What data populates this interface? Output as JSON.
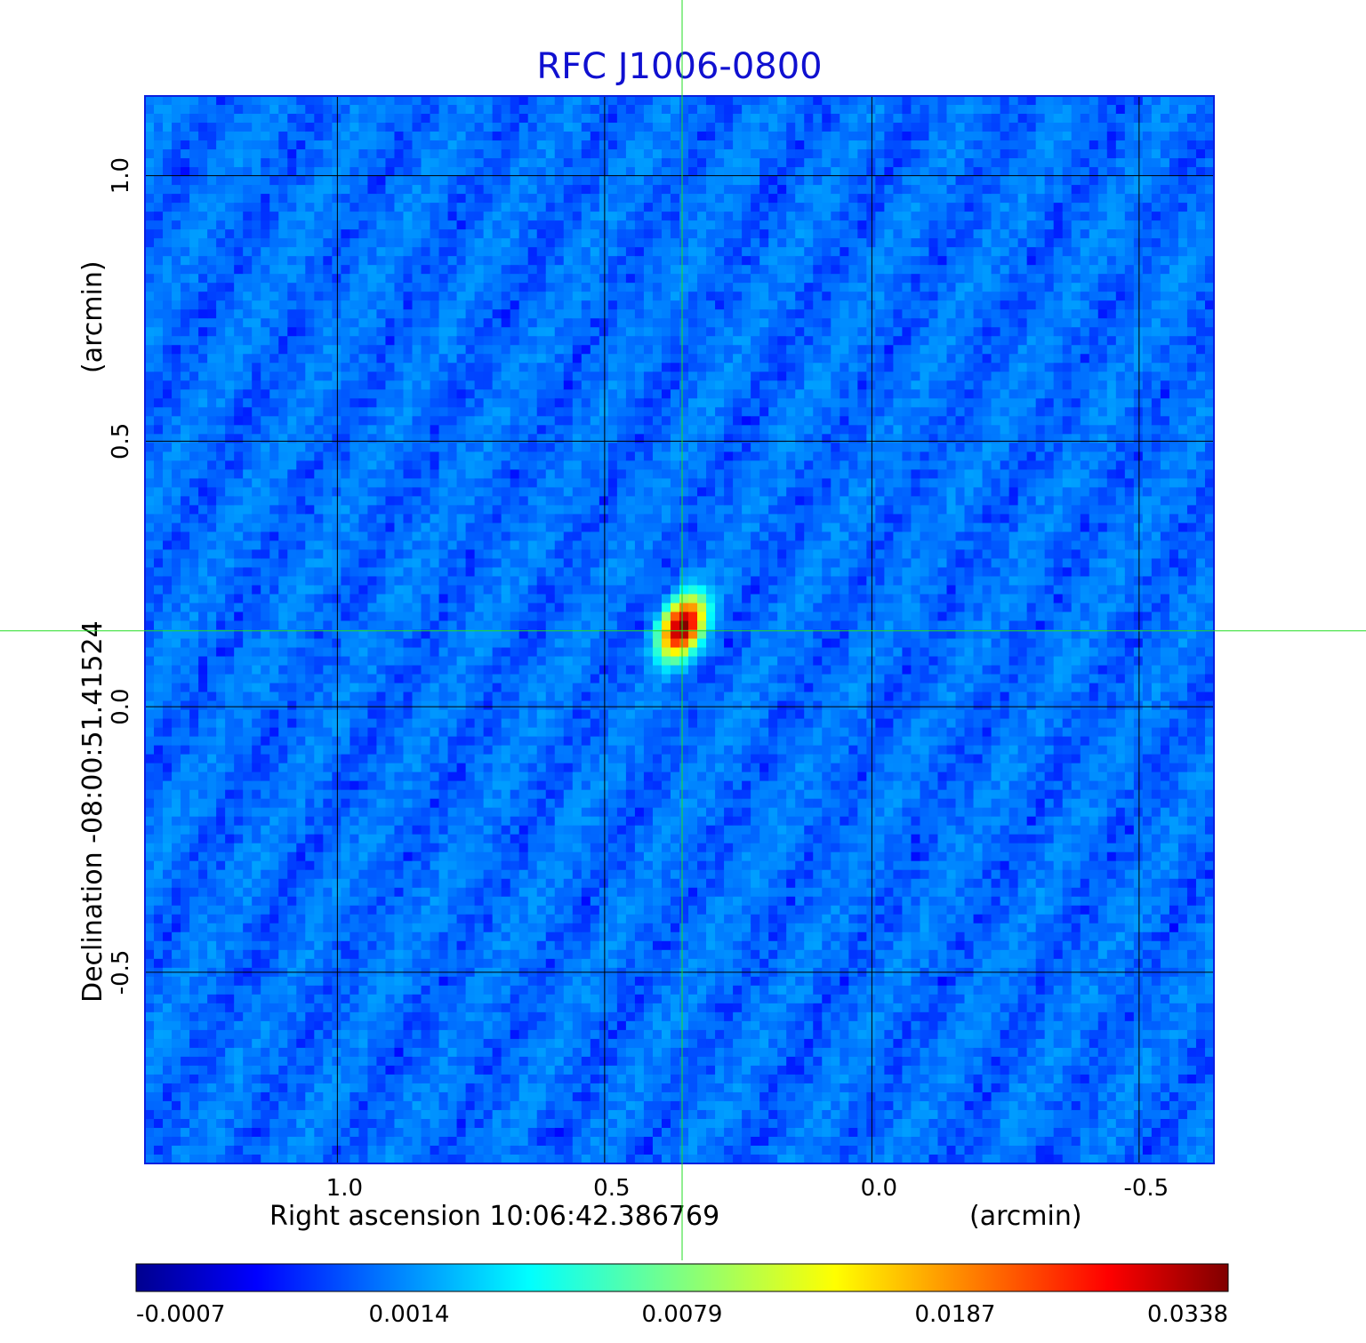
{
  "chart_data": {
    "type": "heatmap",
    "title": "RFC J1006-0800",
    "xlabel": "Right ascension  10:06:42.386769",
    "xunit": "(arcmin)",
    "ylabel": "Declination  -08:00:51.41524",
    "yunit": "(arcmin)",
    "x_ticks": [
      1.0,
      0.5,
      0.0,
      -0.5
    ],
    "x_tick_labels": [
      "1.0",
      "0.5",
      "0.0",
      "-0.5"
    ],
    "y_ticks": [
      1.0,
      0.5,
      0.0,
      -0.5
    ],
    "y_tick_labels": [
      "1.0",
      "0.5",
      "0.0",
      "-0.5"
    ],
    "xlim": [
      1.36,
      -0.64
    ],
    "ylim": [
      -0.86,
      1.15
    ],
    "grid": true,
    "colormap": "jet",
    "colorbar": {
      "tick_labels": [
        "-0.0007",
        "0.0014",
        "0.0079",
        "0.0187",
        "0.0338"
      ],
      "min": -0.0007,
      "max": 0.0338
    },
    "source_peak": {
      "x": 0.355,
      "y": 0.15,
      "value": 0.0338
    },
    "crosshair": {
      "x": 0.355,
      "y": 0.143,
      "color": "#22dd22"
    },
    "background_level": -0.0001
  }
}
